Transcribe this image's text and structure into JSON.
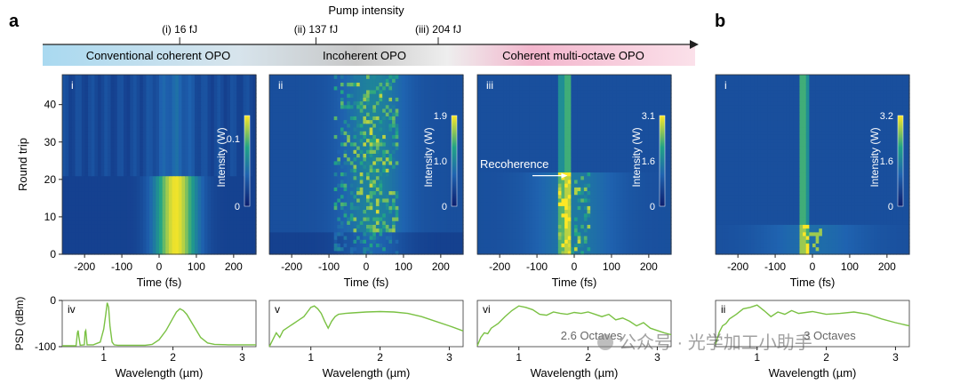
{
  "figure": {
    "panel_a_label": "a",
    "panel_b_label": "b",
    "pump_title": "Pump intensity",
    "pump_ticks": [
      {
        "text": "(i) 16 fJ",
        "pos": 0.265
      },
      {
        "text": "(ii) 137 fJ",
        "pos": 0.51
      },
      {
        "text": "(iii) 204 fJ",
        "pos": 0.818
      }
    ],
    "regimes": [
      {
        "text": "Conventional coherent OPO",
        "color": "#a9d9f0"
      },
      {
        "text": "Incoherent OPO",
        "color": "#c8c8c8"
      },
      {
        "text": "Coherent multi-octave OPO",
        "color": "#f3b6cd"
      }
    ],
    "annotation_recoherence": "Recoherence",
    "watermark": "公众号 · 光学加工小助手"
  },
  "colors": {
    "heatmap_low": "#1d3a8a",
    "heatmap_mid": "#21908c",
    "heatmap_high": "#fde725",
    "spectrum_line": "#7ac143"
  },
  "chart_data": [
    {
      "type": "heatmap",
      "roman": "i",
      "xlabel": "Time (fs)",
      "ylabel": "Round trip",
      "xlim": [
        -260,
        260
      ],
      "ylim": [
        0,
        48
      ],
      "xticks": [
        -200,
        -100,
        0,
        100,
        200
      ],
      "yticks": [
        0,
        10,
        20,
        30,
        40
      ],
      "colorbar": {
        "label": "Intensity (W)",
        "ticks": [
          "0.1",
          "0"
        ],
        "max": 0.1
      },
      "regime": "coherent_lowpower"
    },
    {
      "type": "heatmap",
      "roman": "ii",
      "xlabel": "Time (fs)",
      "ylabel": "",
      "xlim": [
        -260,
        260
      ],
      "ylim": [
        0,
        48
      ],
      "xticks": [
        -200,
        -100,
        0,
        100,
        200
      ],
      "yticks": [],
      "colorbar": {
        "label": "Intensity (W)",
        "ticks": [
          "1.9",
          "1.0",
          "0"
        ],
        "max": 1.9
      },
      "regime": "incoherent"
    },
    {
      "type": "heatmap",
      "roman": "iii",
      "xlabel": "Time (fs)",
      "ylabel": "",
      "xlim": [
        -260,
        260
      ],
      "ylim": [
        0,
        48
      ],
      "xticks": [
        -200,
        -100,
        0,
        100,
        200
      ],
      "yticks": [],
      "colorbar": {
        "label": "Intensity (W)",
        "ticks": [
          "3.1",
          "1.6",
          "0"
        ],
        "max": 3.1
      },
      "regime": "recoherence"
    },
    {
      "type": "heatmap",
      "roman": "i",
      "xlabel": "Time (fs)",
      "ylabel": "",
      "xlim": [
        -260,
        260
      ],
      "ylim": [
        0,
        48
      ],
      "xticks": [
        -200,
        -100,
        0,
        100,
        200
      ],
      "yticks": [],
      "colorbar": {
        "label": "Intensity (W)",
        "ticks": [
          "3.2",
          "1.6",
          "0"
        ],
        "max": 3.2
      },
      "regime": "coherent_highpower"
    },
    {
      "type": "line",
      "roman": "iv",
      "xlabel": "Wavelength (µm)",
      "ylabel": "PSD (dBm)",
      "xlim": [
        0.4,
        3.2
      ],
      "ylim": [
        -100,
        0
      ],
      "xticks": [
        1,
        2,
        3
      ],
      "yticks": [
        0,
        -100
      ],
      "series": [
        {
          "name": "PSD",
          "x": [
            0.4,
            0.6,
            0.62,
            0.63,
            0.64,
            0.66,
            0.72,
            0.73,
            0.74,
            0.76,
            0.85,
            0.95,
            1.0,
            1.03,
            1.05,
            1.07,
            1.09,
            1.12,
            1.15,
            1.2,
            1.4,
            1.6,
            1.7,
            1.8,
            1.9,
            2.0,
            2.05,
            2.1,
            2.15,
            2.2,
            2.3,
            2.4,
            2.5,
            2.6,
            2.8,
            3.0,
            3.2
          ],
          "y": [
            -98,
            -98,
            -70,
            -65,
            -78,
            -97,
            -96,
            -68,
            -65,
            -96,
            -96,
            -90,
            -62,
            -30,
            -5,
            -15,
            -55,
            -90,
            -96,
            -97,
            -97,
            -97,
            -95,
            -85,
            -65,
            -38,
            -25,
            -18,
            -22,
            -30,
            -55,
            -80,
            -92,
            -95,
            -96,
            -96,
            -96
          ]
        }
      ],
      "annotation": ""
    },
    {
      "type": "line",
      "roman": "v",
      "xlabel": "Wavelength (µm)",
      "ylabel": "",
      "xlim": [
        0.4,
        3.2
      ],
      "ylim": [
        -100,
        0
      ],
      "xticks": [
        1,
        2,
        3
      ],
      "yticks": [],
      "series": [
        {
          "name": "PSD",
          "x": [
            0.4,
            0.45,
            0.5,
            0.55,
            0.6,
            0.65,
            0.7,
            0.75,
            0.8,
            0.85,
            0.9,
            0.95,
            1.0,
            1.05,
            1.1,
            1.15,
            1.2,
            1.25,
            1.3,
            1.35,
            1.4,
            1.5,
            1.6,
            1.8,
            2.0,
            2.2,
            2.4,
            2.6,
            2.8,
            3.0,
            3.2
          ],
          "y": [
            -100,
            -85,
            -70,
            -80,
            -65,
            -60,
            -55,
            -50,
            -45,
            -40,
            -35,
            -25,
            -15,
            -12,
            -18,
            -28,
            -45,
            -60,
            -45,
            -35,
            -30,
            -28,
            -27,
            -25,
            -24,
            -25,
            -28,
            -35,
            -45,
            -55,
            -66
          ]
        }
      ],
      "annotation": ""
    },
    {
      "type": "line",
      "roman": "vi",
      "xlabel": "Wavelength (µm)",
      "ylabel": "",
      "xlim": [
        0.4,
        3.2
      ],
      "ylim": [
        -100,
        0
      ],
      "xticks": [
        1,
        2,
        3
      ],
      "yticks": [],
      "series": [
        {
          "name": "PSD",
          "x": [
            0.4,
            0.45,
            0.5,
            0.55,
            0.6,
            0.7,
            0.8,
            0.9,
            1.0,
            1.1,
            1.2,
            1.3,
            1.4,
            1.5,
            1.6,
            1.7,
            1.8,
            1.9,
            2.0,
            2.1,
            2.2,
            2.3,
            2.4,
            2.5,
            2.6,
            2.7,
            2.8,
            2.9,
            3.0,
            3.1,
            3.2
          ],
          "y": [
            -98,
            -80,
            -70,
            -72,
            -60,
            -50,
            -35,
            -22,
            -12,
            -15,
            -20,
            -30,
            -32,
            -25,
            -28,
            -30,
            -26,
            -28,
            -25,
            -30,
            -35,
            -30,
            -42,
            -38,
            -45,
            -55,
            -48,
            -60,
            -65,
            -70,
            -74
          ]
        }
      ],
      "annotation": "2.6 Octaves"
    },
    {
      "type": "line",
      "roman": "ii",
      "xlabel": "Wavelength (µm)",
      "ylabel": "",
      "xlim": [
        0.4,
        3.2
      ],
      "ylim": [
        -100,
        0
      ],
      "xticks": [
        1,
        2,
        3
      ],
      "yticks": [],
      "series": [
        {
          "name": "PSD",
          "x": [
            0.4,
            0.45,
            0.5,
            0.55,
            0.6,
            0.7,
            0.8,
            0.9,
            1.0,
            1.1,
            1.2,
            1.3,
            1.4,
            1.5,
            1.6,
            1.8,
            2.0,
            2.2,
            2.4,
            2.6,
            2.8,
            3.0,
            3.2
          ],
          "y": [
            -95,
            -70,
            -55,
            -50,
            -40,
            -30,
            -18,
            -15,
            -10,
            -22,
            -35,
            -25,
            -30,
            -22,
            -28,
            -24,
            -30,
            -28,
            -25,
            -30,
            -40,
            -48,
            -55
          ]
        }
      ],
      "annotation": "3 Octaves"
    }
  ]
}
